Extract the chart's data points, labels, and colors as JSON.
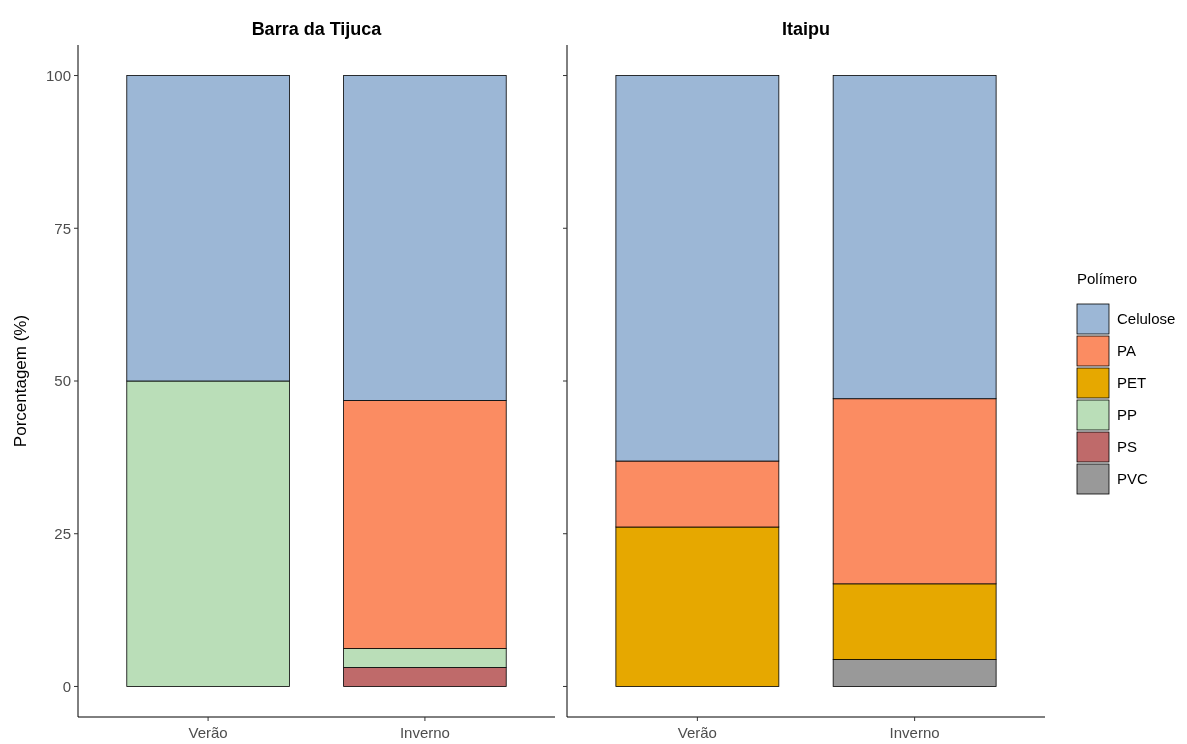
{
  "chart_data": [
    {
      "type": "bar",
      "title": "Barra da Tijuca",
      "ylabel": "Porcentagem (%)",
      "categories": [
        "Verão",
        "Inverno"
      ],
      "stacked": true,
      "ylim": [
        -5,
        105
      ],
      "yticks": [
        0,
        25,
        50,
        75,
        100
      ],
      "grid": false,
      "series": [
        {
          "color": "#bf6a6a",
          "values": [
            null,
            3.1
          ]
        },
        {
          "color": "#badeb8",
          "values": [
            50,
            3.1
          ]
        },
        {
          "color": "#fb8c62",
          "values": [
            null,
            40.6
          ]
        },
        {
          "color": "#9cb7d6",
          "values": [
            50,
            53.2
          ]
        }
      ]
    },
    {
      "type": "bar",
      "title": "Itaipu",
      "categories": [
        "Verão",
        "Inverno"
      ],
      "stacked": true,
      "ylim": [
        -5,
        105
      ],
      "yticks": [
        0,
        25,
        50,
        75,
        100
      ],
      "tick_labels": "x",
      "grid": false,
      "legend": "right",
      "legend_title": "Polímero",
      "series": [
        {
          "name": "PVC",
          "color": "#999999",
          "values": [
            null,
            4.4
          ]
        },
        {
          "name": "PS",
          "color": "#bf6a6a",
          "values": [
            null,
            null
          ]
        },
        {
          "name": "PP",
          "color": "#badeb8",
          "values": [
            null,
            null
          ]
        },
        {
          "name": "PET",
          "color": "#e6a800",
          "values": [
            26.1,
            12.4
          ]
        },
        {
          "name": "PA",
          "color": "#fb8c62",
          "values": [
            10.8,
            30.3
          ]
        },
        {
          "name": "Celulose",
          "color": "#9cb7d6",
          "values": [
            63.1,
            52.9
          ]
        }
      ]
    }
  ]
}
